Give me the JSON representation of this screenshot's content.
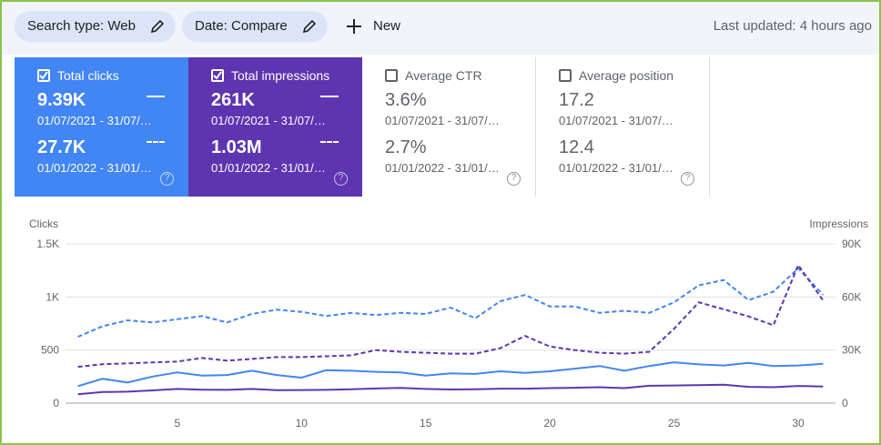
{
  "header": {
    "chips": [
      "Search type: Web",
      "Date: Compare"
    ],
    "new": "New",
    "updated": "Last updated: 4 hours ago"
  },
  "cards": [
    {
      "label": "Total clicks",
      "checked": true,
      "values": [
        "9.39K",
        "27.7K"
      ],
      "dates": [
        "01/07/2021 - 31/07/…",
        "01/01/2022 - 31/01/…"
      ]
    },
    {
      "label": "Total impressions",
      "checked": true,
      "values": [
        "261K",
        "1.03M"
      ],
      "dates": [
        "01/07/2021 - 31/07/…",
        "01/01/2022 - 31/01/…"
      ]
    },
    {
      "label": "Average CTR",
      "checked": false,
      "values": [
        "3.6%",
        "2.7%"
      ],
      "dates": [
        "01/07/2021 - 31/07/…",
        "01/01/2022 - 31/01/…"
      ]
    },
    {
      "label": "Average position",
      "checked": false,
      "values": [
        "17.2",
        "12.4"
      ],
      "dates": [
        "01/07/2021 - 31/07/…",
        "01/01/2022 - 31/01/…"
      ]
    }
  ],
  "chart_data": {
    "type": "line",
    "ylabel": "Clicks",
    "y2label": "Impressions",
    "x": [
      1,
      2,
      3,
      4,
      5,
      6,
      7,
      8,
      9,
      10,
      11,
      12,
      13,
      14,
      15,
      16,
      17,
      18,
      19,
      20,
      21,
      22,
      23,
      24,
      25,
      26,
      27,
      28,
      29,
      30,
      31
    ],
    "xlim": [
      0.5,
      31.5
    ],
    "xticks": [
      5,
      10,
      15,
      20,
      25,
      30
    ],
    "ylim": [
      0,
      1500
    ],
    "yticks": [
      0,
      500,
      {
        "value": 1000,
        "label": "1K"
      },
      {
        "value": 1500,
        "label": "1.5K"
      }
    ],
    "y2lim": [
      0,
      90000
    ],
    "y2ticks": [
      0,
      {
        "value": 30000,
        "label": "30K"
      },
      {
        "value": 60000,
        "label": "60K"
      },
      {
        "value": 90000,
        "label": "90K"
      }
    ],
    "grid": true,
    "series": [
      {
        "color": "#4285f4",
        "dashed": false,
        "values": [
          160,
          230,
          195,
          250,
          290,
          260,
          265,
          305,
          265,
          240,
          310,
          305,
          295,
          290,
          260,
          280,
          275,
          300,
          285,
          300,
          325,
          350,
          305,
          350,
          385,
          365,
          355,
          380,
          350,
          355,
          370
        ]
      },
      {
        "color": "#4285f4",
        "dashed": true,
        "values": [
          625,
          725,
          780,
          760,
          790,
          820,
          760,
          840,
          880,
          860,
          820,
          850,
          830,
          850,
          840,
          900,
          800,
          960,
          1020,
          910,
          910,
          850,
          870,
          850,
          950,
          1110,
          1160,
          970,
          1050,
          1270,
          1020
        ]
      },
      {
        "color": "#5e35b1",
        "dashed": false,
        "axis": "y2",
        "values": [
          5000,
          6300,
          6500,
          7200,
          8000,
          7600,
          7500,
          8000,
          7300,
          7400,
          7500,
          7800,
          8300,
          8600,
          8000,
          7700,
          7800,
          8200,
          8200,
          8500,
          8700,
          9000,
          8500,
          9800,
          10000,
          10200,
          10400,
          9200,
          9000,
          9700,
          9400
        ]
      },
      {
        "color": "#5e35b1",
        "dashed": true,
        "axis": "y2",
        "values": [
          20500,
          22000,
          22500,
          23000,
          23500,
          25500,
          24000,
          25000,
          26000,
          26000,
          26500,
          27000,
          30000,
          29000,
          28500,
          28000,
          28000,
          31000,
          38000,
          32000,
          30000,
          28500,
          28000,
          29000,
          42000,
          57000,
          53000,
          49000,
          44000,
          78000,
          58000
        ]
      }
    ]
  }
}
